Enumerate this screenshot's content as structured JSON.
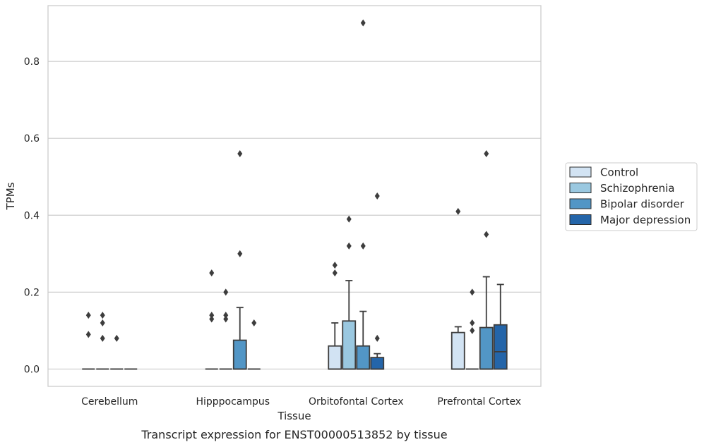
{
  "chart_data": {
    "type": "boxplot",
    "xlabel": "Tissue",
    "ylabel": "TPMs",
    "caption": "Transcript expression for ENST00000513852 by tissue",
    "ylim": [
      -0.045,
      0.945
    ],
    "yticks": [
      "0.0",
      "0.2",
      "0.4",
      "0.6",
      "0.8"
    ],
    "grid": true,
    "legend_position": "right",
    "categories": [
      "Cerebellum",
      "Hipppocampus",
      "Orbitofontal Cortex",
      "Prefrontal Cortex"
    ],
    "series": [
      {
        "name": "Control",
        "color": "#d2e3f3",
        "boxes": [
          {
            "q1": 0,
            "median": 0,
            "q3": 0,
            "whisker_low": 0,
            "whisker_high": 0,
            "outliers": [
              0.14,
              0.09
            ]
          },
          {
            "q1": 0,
            "median": 0,
            "q3": 0,
            "whisker_low": 0,
            "whisker_high": 0,
            "outliers": [
              0.25,
              0.14,
              0.13
            ]
          },
          {
            "q1": 0,
            "median": 0,
            "q3": 0.06,
            "whisker_low": 0,
            "whisker_high": 0.12,
            "outliers": [
              0.27,
              0.25
            ]
          },
          {
            "q1": 0,
            "median": 0,
            "q3": 0.095,
            "whisker_low": 0,
            "whisker_high": 0.11,
            "outliers": [
              0.41
            ]
          }
        ]
      },
      {
        "name": "Schizophrenia",
        "color": "#9ac8e0",
        "boxes": [
          {
            "q1": 0,
            "median": 0,
            "q3": 0,
            "whisker_low": 0,
            "whisker_high": 0,
            "outliers": [
              0.14,
              0.12,
              0.08
            ]
          },
          {
            "q1": 0,
            "median": 0,
            "q3": 0,
            "whisker_low": 0,
            "whisker_high": 0,
            "outliers": [
              0.2,
              0.14,
              0.13
            ]
          },
          {
            "q1": 0,
            "median": 0,
            "q3": 0.125,
            "whisker_low": 0,
            "whisker_high": 0.23,
            "outliers": [
              0.39,
              0.32
            ]
          },
          {
            "q1": 0,
            "median": 0,
            "q3": 0,
            "whisker_low": 0,
            "whisker_high": 0,
            "outliers": [
              0.2,
              0.12,
              0.1
            ]
          }
        ]
      },
      {
        "name": "Bipolar disorder",
        "color": "#5296c6",
        "boxes": [
          {
            "q1": 0,
            "median": 0,
            "q3": 0,
            "whisker_low": 0,
            "whisker_high": 0,
            "outliers": [
              0.08
            ]
          },
          {
            "q1": 0,
            "median": 0,
            "q3": 0.075,
            "whisker_low": 0,
            "whisker_high": 0.16,
            "outliers": [
              0.56,
              0.3
            ]
          },
          {
            "q1": 0,
            "median": 0,
            "q3": 0.06,
            "whisker_low": 0,
            "whisker_high": 0.15,
            "outliers": [
              0.9,
              0.32
            ]
          },
          {
            "q1": 0,
            "median": 0,
            "q3": 0.108,
            "whisker_low": 0,
            "whisker_high": 0.24,
            "outliers": [
              0.56,
              0.35
            ]
          }
        ]
      },
      {
        "name": "Major depression",
        "color": "#2465a9",
        "boxes": [
          {
            "q1": 0,
            "median": 0,
            "q3": 0,
            "whisker_low": 0,
            "whisker_high": 0,
            "outliers": []
          },
          {
            "q1": 0,
            "median": 0,
            "q3": 0,
            "whisker_low": 0,
            "whisker_high": 0,
            "outliers": [
              0.12
            ]
          },
          {
            "q1": 0,
            "median": 0,
            "q3": 0.03,
            "whisker_low": 0,
            "whisker_high": 0.04,
            "outliers": [
              0.45,
              0.08
            ]
          },
          {
            "q1": 0,
            "median": 0.045,
            "q3": 0.115,
            "whisker_low": 0,
            "whisker_high": 0.22,
            "outliers": []
          }
        ]
      }
    ]
  }
}
